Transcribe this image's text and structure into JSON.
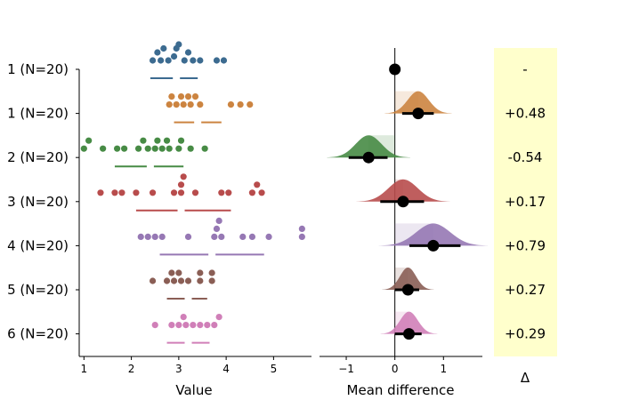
{
  "chart_data": {
    "type": "scatter",
    "title": "",
    "rows": [
      {
        "label": "1 (N=20)",
        "color": "#3c6b90",
        "points": [
          2.45,
          2.62,
          2.78,
          2.95,
          3.12,
          3.3,
          3.45,
          2.68,
          2.9,
          3.2,
          2.55,
          3.0,
          3.8,
          3.95
        ],
        "quartiles": [
          2.4,
          2.95,
          3.4
        ],
        "delta": null,
        "ci": null,
        "delta_label": "-"
      },
      {
        "label": "1 (N=20)",
        "color": "#cc8440",
        "points": [
          2.8,
          2.95,
          3.1,
          3.25,
          3.45,
          2.85,
          3.35,
          3.2,
          3.05,
          4.1,
          4.3,
          4.5
        ],
        "quartiles": [
          2.9,
          3.4,
          3.9
        ],
        "delta": 0.48,
        "ci": [
          0.15,
          0.8
        ],
        "delta_label": "+0.48"
      },
      {
        "label": "2 (N=20)",
        "color": "#478b45",
        "points": [
          1.0,
          1.1,
          1.4,
          1.7,
          1.85,
          2.15,
          2.35,
          2.55,
          2.75,
          3.05,
          2.25,
          2.5,
          2.65,
          2.8,
          3.0,
          3.25,
          3.55
        ],
        "quartiles": [
          1.65,
          2.4,
          3.1
        ],
        "delta": -0.54,
        "ci": [
          -0.95,
          -0.15
        ],
        "delta_label": "-0.54"
      },
      {
        "label": "3 (N=20)",
        "color": "#b84c4c",
        "points": [
          1.35,
          1.65,
          1.8,
          2.1,
          2.45,
          2.9,
          3.1,
          3.35,
          3.05,
          3.05,
          3.9,
          4.05,
          4.55,
          4.65,
          4.75
        ],
        "quartiles": [
          2.1,
          3.05,
          4.1
        ],
        "delta": 0.17,
        "ci": [
          -0.3,
          0.6
        ],
        "delta_label": "+0.17"
      },
      {
        "label": "4 (N=20)",
        "color": "#9678b4",
        "points": [
          2.2,
          2.35,
          2.5,
          2.65,
          3.2,
          3.75,
          3.9,
          3.85,
          3.8,
          4.35,
          4.55,
          4.9,
          5.6,
          5.6
        ],
        "quartiles": [
          2.6,
          3.7,
          4.8
        ],
        "delta": 0.79,
        "ci": [
          0.3,
          1.35
        ],
        "delta_label": "+0.79"
      },
      {
        "label": "5 (N=20)",
        "color": "#8a5e55",
        "points": [
          2.45,
          2.75,
          2.9,
          3.05,
          3.2,
          3.45,
          3.7,
          2.85,
          3.0,
          3.45,
          3.7
        ],
        "quartiles": [
          2.75,
          3.2,
          3.6
        ],
        "delta": 0.27,
        "ci": [
          0.0,
          0.5
        ],
        "delta_label": "+0.27"
      },
      {
        "label": "6 (N=20)",
        "color": "#d07fb8",
        "points": [
          2.5,
          2.85,
          3.0,
          3.15,
          3.3,
          3.45,
          3.6,
          3.75,
          3.85,
          3.1
        ],
        "quartiles": [
          2.75,
          3.2,
          3.65
        ],
        "delta": 0.29,
        "ci": [
          0.0,
          0.55
        ],
        "delta_label": "+0.29"
      }
    ],
    "left_axis": {
      "xlabel": "Value",
      "xlim": [
        0.9,
        5.8
      ],
      "ticks": [
        1,
        2,
        3,
        4,
        5
      ]
    },
    "right_axis": {
      "xlabel": "Mean difference",
      "xlim": [
        -1.55,
        1.8
      ],
      "ticks": [
        -1,
        0,
        1
      ],
      "tick_labels": [
        "−1",
        "0",
        "1"
      ]
    },
    "delta_column": {
      "header": "Δ",
      "background": "#ffffcc"
    }
  }
}
